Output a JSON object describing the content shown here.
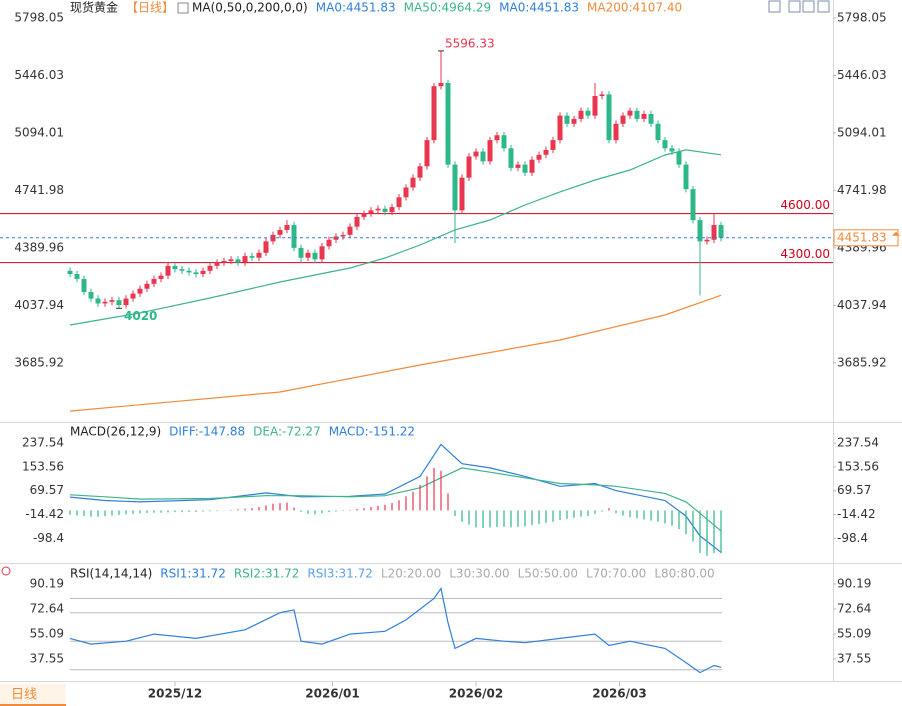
{
  "chart_data": [
    {
      "type": "candlestick",
      "title": "现货黄金",
      "period": "【日线】",
      "indicator": "MA(0,50,0,200,0,0)",
      "up_color": "#e8364f",
      "down_color": "#2eb88a",
      "xlim": [
        -10,
        109
      ],
      "ylim": [
        3324,
        5908
      ],
      "yticks": [
        5798.05,
        5446.03,
        5094.01,
        4741.98,
        4389.96,
        4037.94,
        3685.92
      ],
      "xticks": [
        {
          "value": 15,
          "label": "2025/12"
        },
        {
          "value": 37.5,
          "label": "2026/01"
        },
        {
          "value": 58,
          "label": "2026/02"
        },
        {
          "value": 78.5,
          "label": "2026/03"
        }
      ],
      "open": [
        4250,
        4230,
        4200,
        4120,
        4080,
        4050,
        4060,
        4070,
        4040,
        4080,
        4110,
        4140,
        4170,
        4200,
        4220,
        4280,
        4260,
        4250,
        4240,
        4230,
        4250,
        4280,
        4300,
        4310,
        4320,
        4300,
        4340,
        4330,
        4360,
        4430,
        4470,
        4500,
        4530,
        4390,
        4330,
        4360,
        4320,
        4400,
        4440,
        4460,
        4470,
        4520,
        4580,
        4600,
        4620,
        4630,
        4610,
        4640,
        4700,
        4760,
        4820,
        4890,
        5050,
        5380,
        5400,
        4900,
        4620,
        4820,
        4950,
        4980,
        4920,
        5050,
        5080,
        5000,
        4880,
        4900,
        4850,
        4930,
        4960,
        4990,
        5050,
        5200,
        5150,
        5180,
        5230,
        5200,
        5320,
        5330,
        5050,
        5150,
        5200,
        5230,
        5180,
        5210,
        5150,
        5050,
        5000,
        4980,
        4900,
        4750,
        4560,
        4430,
        4440,
        4530
      ],
      "high": [
        4270,
        4250,
        4220,
        4140,
        4100,
        4080,
        4090,
        4090,
        4100,
        4130,
        4160,
        4190,
        4220,
        4240,
        4300,
        4300,
        4280,
        4270,
        4260,
        4270,
        4300,
        4320,
        4330,
        4340,
        4340,
        4360,
        4360,
        4380,
        4450,
        4490,
        4520,
        4560,
        4550,
        4410,
        4380,
        4380,
        4420,
        4460,
        4480,
        4490,
        4540,
        4600,
        4620,
        4640,
        4650,
        4650,
        4660,
        4720,
        4780,
        4840,
        4910,
        5070,
        5400,
        5596.33,
        5420,
        4920,
        4840,
        4970,
        5000,
        5000,
        5070,
        5100,
        5100,
        5020,
        4920,
        4920,
        4950,
        4980,
        5010,
        5070,
        5220,
        5220,
        5200,
        5250,
        5250,
        5400,
        5350,
        5350,
        5170,
        5220,
        5250,
        5250,
        5230,
        5230,
        5170,
        5070,
        5020,
        5000,
        4920,
        4770,
        4580,
        4460,
        4600,
        4550
      ],
      "low": [
        4210,
        4180,
        4100,
        4060,
        4030,
        4030,
        4040,
        4020,
        4020,
        4060,
        4090,
        4120,
        4150,
        4180,
        4200,
        4240,
        4230,
        4220,
        4210,
        4210,
        4230,
        4260,
        4280,
        4290,
        4280,
        4280,
        4310,
        4310,
        4340,
        4410,
        4450,
        4480,
        4370,
        4300,
        4310,
        4300,
        4300,
        4380,
        4420,
        4440,
        4450,
        4500,
        4560,
        4580,
        4600,
        4590,
        4590,
        4620,
        4680,
        4740,
        4800,
        4870,
        5030,
        5360,
        4880,
        4420,
        4600,
        4800,
        4930,
        4900,
        4900,
        5030,
        4980,
        4860,
        4860,
        4830,
        4830,
        4910,
        4940,
        4970,
        5030,
        5130,
        5130,
        5160,
        5180,
        5180,
        5300,
        5030,
        5030,
        5130,
        5180,
        5160,
        5160,
        5130,
        5030,
        4980,
        4960,
        4880,
        4730,
        4540,
        4099.02,
        4410,
        4420,
        4430
      ],
      "close": [
        4230,
        4200,
        4120,
        4080,
        4050,
        4060,
        4070,
        4040,
        4080,
        4110,
        4140,
        4170,
        4200,
        4220,
        4280,
        4260,
        4250,
        4240,
        4230,
        4250,
        4280,
        4300,
        4310,
        4320,
        4300,
        4340,
        4330,
        4360,
        4430,
        4470,
        4500,
        4530,
        4390,
        4330,
        4360,
        4320,
        4400,
        4440,
        4460,
        4470,
        4520,
        4580,
        4600,
        4620,
        4630,
        4610,
        4640,
        4700,
        4760,
        4820,
        4890,
        5050,
        5380,
        5400,
        4900,
        4620,
        4820,
        4950,
        4980,
        4920,
        5050,
        5080,
        5000,
        4880,
        4900,
        4850,
        4930,
        4960,
        4990,
        5050,
        5200,
        5150,
        5180,
        5230,
        5200,
        5320,
        5330,
        5050,
        5150,
        5200,
        5230,
        5180,
        5210,
        5150,
        5050,
        5000,
        4980,
        4900,
        4750,
        4560,
        4430,
        4440,
        4530,
        4451.83
      ],
      "series": [
        {
          "name": "MA0:4451.83",
          "color": "#2f7fdb"
        },
        {
          "name": "MA50:4964.29",
          "color": "#3cb48c",
          "x": [
            0,
            10,
            20,
            30,
            40,
            45,
            50,
            55,
            60,
            65,
            70,
            75,
            80,
            85,
            88,
            93
          ],
          "values": [
            3918,
            3992,
            4083,
            4181,
            4267,
            4328,
            4408,
            4500,
            4561,
            4653,
            4733,
            4806,
            4867,
            4959,
            4990,
            4960
          ]
        },
        {
          "name": "MA0:4451.83",
          "color": "#2f7fdb"
        },
        {
          "name": "MA200:4107.40",
          "color": "#f28a3a",
          "x": [
            0,
            30,
            50,
            70,
            85,
            93
          ],
          "values": [
            3391,
            3508,
            3673,
            3826,
            3979,
            4100
          ]
        }
      ],
      "hlines": [
        {
          "value": 4600,
          "label": "4600.00",
          "color": "#d0021b"
        },
        {
          "value": 4300,
          "label": "4300.00",
          "color": "#d0021b"
        }
      ],
      "last_color": "#f28a3a"
    },
    {
      "type": "macd",
      "title": "MACD(26,12,9)",
      "ylim": [
        -182,
        305
      ],
      "yticks": [
        237.54,
        153.56,
        69.57,
        -14.42,
        -98.4
      ],
      "up_color": "#e8364f",
      "down_color": "#2eb88a",
      "series": [
        {
          "name": "DIFF:-147.88",
          "color": "#2f7fdb",
          "x": [
            0,
            5,
            10,
            20,
            28,
            33,
            40,
            45,
            50,
            53,
            56,
            60,
            65,
            70,
            75,
            78,
            85,
            88,
            90,
            93
          ],
          "values": [
            47,
            35,
            30,
            38,
            62,
            48,
            50,
            58,
            120,
            233,
            165,
            150,
            120,
            85,
            95,
            70,
            35,
            -20,
            -90,
            -147.88
          ]
        },
        {
          "name": "DEA:-72.27",
          "color": "#3cb48c",
          "x": [
            0,
            5,
            10,
            20,
            28,
            33,
            40,
            45,
            50,
            53,
            56,
            60,
            65,
            70,
            75,
            78,
            85,
            88,
            90,
            93
          ],
          "values": [
            55,
            48,
            40,
            42,
            52,
            52,
            48,
            52,
            80,
            115,
            150,
            135,
            115,
            95,
            90,
            85,
            60,
            30,
            -10,
            -72.27
          ]
        },
        {
          "name": "MACD:-151.22",
          "color": "#2f7fdb",
          "values": [
            -15,
            -18,
            -20,
            -22,
            -22,
            -20,
            -18,
            -16,
            -14,
            -12,
            -10,
            -9,
            -8,
            -8,
            -7,
            -6,
            -6,
            -5,
            -5,
            -4,
            -3,
            -2,
            -1,
            2,
            4,
            6,
            8,
            12,
            18,
            24,
            26,
            28,
            10,
            -5,
            -12,
            -14,
            -10,
            -6,
            -4,
            -2,
            2,
            5,
            8,
            12,
            16,
            20,
            26,
            36,
            50,
            66,
            90,
            120,
            150,
            140,
            60,
            -20,
            -40,
            -50,
            -60,
            -62,
            -60,
            -58,
            -58,
            -60,
            -58,
            -56,
            -52,
            -48,
            -44,
            -40,
            -34,
            -30,
            -26,
            -22,
            -20,
            -12,
            -4,
            8,
            -10,
            -18,
            -24,
            -28,
            -32,
            -36,
            -40,
            -46,
            -54,
            -66,
            -84,
            -110,
            -150,
            -160,
            -150,
            -151.22
          ]
        }
      ]
    },
    {
      "type": "rsi",
      "title": "RSI(14,14,14)",
      "ylim": [
        22.8,
        102.8
      ],
      "yticks": [
        90.19,
        72.64,
        55.09,
        37.55
      ],
      "series": [
        {
          "name": "RSI1:31.72",
          "color": "#2f7fdb",
          "x": [
            0,
            3,
            8,
            12,
            18,
            25,
            30,
            32,
            33,
            36,
            40,
            45,
            48,
            52,
            53,
            54,
            55,
            58,
            62,
            65,
            70,
            75,
            77,
            80,
            85,
            88,
            90,
            92,
            93
          ],
          "values": [
            52,
            48,
            50,
            55,
            52,
            58,
            70,
            72,
            50,
            48,
            55,
            57,
            65,
            80,
            87,
            63,
            45,
            52,
            50,
            49,
            52,
            55,
            47,
            50,
            45,
            35,
            28,
            33,
            31.72
          ]
        },
        {
          "name": "RSI2:31.72",
          "color": "#3cb48c"
        },
        {
          "name": "RSI3:31.72",
          "color": "#5aa0e8"
        }
      ],
      "levels": [
        {
          "value": 20,
          "label": "L20:20.00"
        },
        {
          "value": 30,
          "label": "L30:30.00"
        },
        {
          "value": 50,
          "label": "L50:50.00"
        },
        {
          "value": 70,
          "label": "L70:70.00"
        },
        {
          "value": 80,
          "label": "L80:80.00"
        }
      ],
      "level_color": "#bbbbbb",
      "period_button": "日线"
    }
  ]
}
